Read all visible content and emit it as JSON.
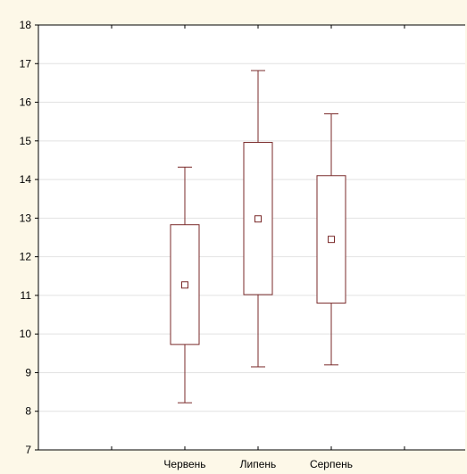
{
  "chart_data": {
    "type": "box",
    "title": "",
    "xlabel": "",
    "ylabel": "",
    "ylim": [
      7,
      18
    ],
    "yticks": [
      7,
      8,
      9,
      10,
      11,
      12,
      13,
      14,
      15,
      16,
      17,
      18
    ],
    "grid": "horizontal",
    "categories": [
      "Червень",
      "Липень",
      "Серпень"
    ],
    "boxes": [
      {
        "category": "Червень",
        "whisker_low": 8.22,
        "q1": 9.73,
        "mean": 11.27,
        "q3": 12.83,
        "whisker_high": 14.32
      },
      {
        "category": "Липень",
        "whisker_low": 9.15,
        "q1": 11.02,
        "mean": 12.98,
        "q3": 14.96,
        "whisker_high": 16.82
      },
      {
        "category": "Серпень",
        "whisker_low": 9.2,
        "q1": 10.8,
        "mean": 12.45,
        "q3": 14.1,
        "whisker_high": 15.7
      }
    ],
    "colors": {
      "background": "#fdf8e8",
      "plot_area": "#ffffff",
      "box": "#7a2a2a",
      "grid": "#e2e2e2",
      "axis": "#000000"
    }
  }
}
